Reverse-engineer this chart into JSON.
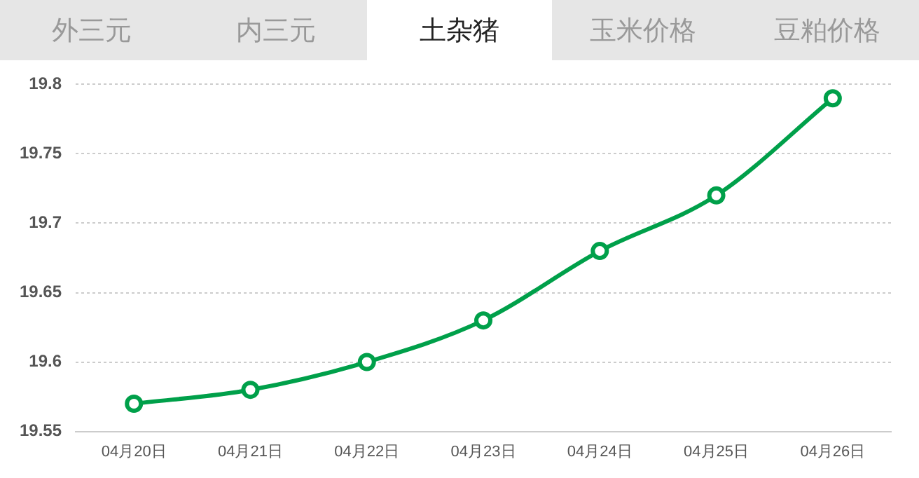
{
  "chart_data": {
    "type": "line",
    "title": "土杂猪",
    "annotations": [
      "外三元",
      "内三元",
      "玉米价格",
      "豆粕价格"
    ],
    "categories": [
      "04月20日",
      "04月21日",
      "04月22日",
      "04月23日",
      "04月24日",
      "04月25日",
      "04月26日"
    ],
    "series": [
      {
        "color": "#00a04a",
        "values": [
          19.57,
          19.58,
          19.6,
          19.63,
          19.68,
          19.72,
          19.79
        ]
      }
    ],
    "ylim": [
      19.55,
      19.8
    ],
    "yticks": [
      19.55,
      19.6,
      19.65,
      19.7,
      19.75,
      19.8
    ],
    "grid": "y",
    "legend": false,
    "marker": "circle",
    "line_style": "solid"
  }
}
